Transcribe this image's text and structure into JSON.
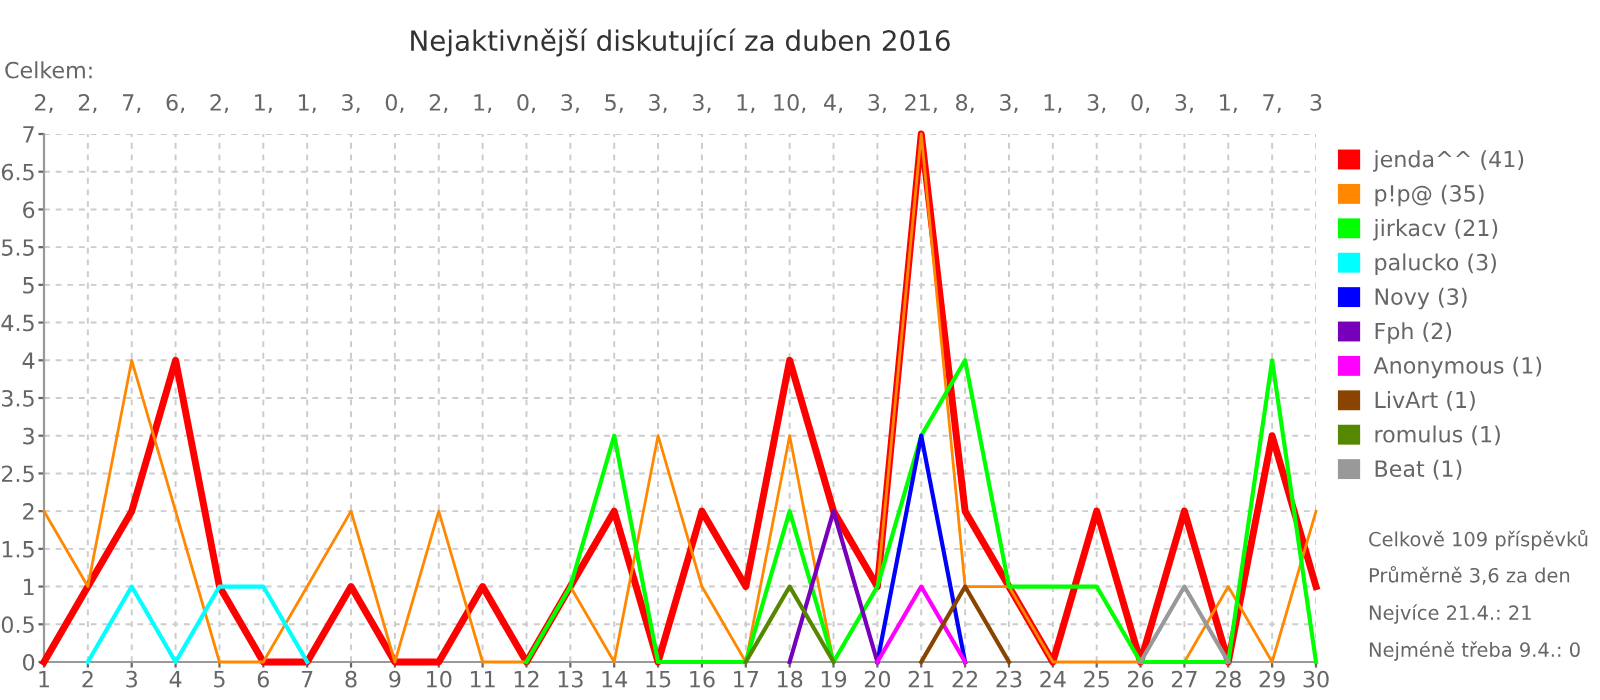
{
  "chart_data": {
    "type": "line",
    "title": "Nejaktivnější diskutující za duben 2016",
    "x": [
      1,
      2,
      3,
      4,
      5,
      6,
      7,
      8,
      9,
      10,
      11,
      12,
      13,
      14,
      15,
      16,
      17,
      18,
      19,
      20,
      21,
      22,
      23,
      24,
      25,
      26,
      27,
      28,
      29,
      30
    ],
    "xlim": [
      1,
      30
    ],
    "xticks": [
      1,
      2,
      3,
      4,
      5,
      6,
      7,
      8,
      9,
      10,
      11,
      12,
      13,
      14,
      15,
      16,
      17,
      18,
      19,
      20,
      21,
      22,
      23,
      24,
      25,
      26,
      27,
      28,
      29,
      30
    ],
    "ylim": [
      0,
      7
    ],
    "yticks": [
      0,
      {
        "value": 0.5,
        "label": "0.5"
      },
      1,
      {
        "value": 1.5,
        "label": "1.5"
      },
      2,
      {
        "value": 2.5,
        "label": "2.5"
      },
      3,
      {
        "value": 3.5,
        "label": "3.5"
      },
      4,
      {
        "value": 4.5,
        "label": "4.5"
      },
      5,
      {
        "value": 5.5,
        "label": "5.5"
      },
      6,
      {
        "value": 6.5,
        "label": "6.5"
      },
      7
    ],
    "grid": true,
    "legend": "right",
    "marker": "none",
    "line_style": "solid",
    "totals": [
      "2,",
      "2,",
      "7,",
      "6,",
      "2,",
      "1,",
      "1,",
      "3,",
      "0,",
      "2,",
      "1,",
      "0,",
      "3,",
      "5,",
      "3,",
      "3,",
      "1,",
      "10,",
      "4,",
      "3,",
      "21,",
      "8,",
      "3,",
      "1,",
      "3,",
      "0,",
      "3,",
      "1,",
      "7,",
      "3"
    ],
    "annotations": [
      "Celkem:",
      "Celkově 109 příspěvků",
      "Průměrně 3,6 za den",
      "Nejvíce 21.4.: 21",
      "Nejméně třeba 9.4.: 0"
    ],
    "series": [
      {
        "name": "jenda^^ (41)",
        "color": "#ff0000",
        "values": [
          0,
          1,
          2,
          4,
          1,
          0,
          0,
          1,
          0,
          0,
          1,
          0,
          1,
          2,
          0,
          2,
          1,
          4,
          2,
          1,
          7,
          2,
          1,
          0,
          2,
          0,
          2,
          0,
          3,
          1
        ]
      },
      {
        "name": "p!p@ (35)",
        "color": "#ff8800",
        "values": [
          2,
          1,
          4,
          2,
          0,
          0,
          1,
          2,
          0,
          2,
          0,
          0,
          1,
          0,
          3,
          1,
          0,
          3,
          0,
          1,
          7,
          1,
          1,
          0,
          0,
          0,
          0,
          1,
          0,
          2
        ]
      },
      {
        "name": "jirkacv (21)",
        "color": "#00ff00",
        "values": [
          null,
          null,
          null,
          null,
          null,
          null,
          null,
          null,
          null,
          null,
          null,
          0,
          1,
          3,
          0,
          0,
          0,
          2,
          0,
          1,
          3,
          4,
          1,
          1,
          1,
          0,
          0,
          0,
          4,
          0
        ]
      },
      {
        "name": "palucko (3)",
        "color": "#00ffff",
        "values": [
          null,
          0,
          1,
          0,
          1,
          1,
          0,
          null,
          null,
          null,
          null,
          null,
          null,
          null,
          null,
          null,
          null,
          null,
          null,
          null,
          null,
          null,
          null,
          null,
          null,
          null,
          null,
          null,
          null,
          null
        ]
      },
      {
        "name": "Novy (3)",
        "color": "#0000ff",
        "values": [
          null,
          null,
          null,
          null,
          null,
          null,
          null,
          null,
          null,
          null,
          null,
          null,
          null,
          null,
          null,
          null,
          null,
          null,
          null,
          0,
          3,
          0,
          null,
          null,
          null,
          null,
          null,
          null,
          null,
          null
        ]
      },
      {
        "name": "Fph (2)",
        "color": "#7700bb",
        "values": [
          null,
          null,
          null,
          null,
          null,
          null,
          null,
          null,
          null,
          null,
          null,
          null,
          null,
          null,
          null,
          null,
          null,
          0,
          2,
          0,
          null,
          null,
          null,
          null,
          null,
          null,
          null,
          null,
          null,
          null
        ]
      },
      {
        "name": "Anonymous (1)",
        "color": "#ff00ff",
        "values": [
          null,
          null,
          null,
          null,
          null,
          null,
          null,
          null,
          null,
          null,
          null,
          null,
          null,
          null,
          null,
          null,
          null,
          null,
          null,
          0,
          1,
          0,
          null,
          null,
          null,
          null,
          null,
          null,
          null,
          null
        ]
      },
      {
        "name": "LivArt (1)",
        "color": "#884400",
        "values": [
          null,
          null,
          null,
          null,
          null,
          null,
          null,
          null,
          null,
          null,
          null,
          null,
          null,
          null,
          null,
          null,
          null,
          null,
          null,
          null,
          0,
          1,
          0,
          null,
          null,
          null,
          null,
          null,
          null,
          null
        ]
      },
      {
        "name": "romulus (1)",
        "color": "#558800",
        "values": [
          null,
          null,
          null,
          null,
          null,
          null,
          null,
          null,
          null,
          null,
          null,
          null,
          null,
          null,
          null,
          null,
          0,
          1,
          0,
          null,
          null,
          null,
          null,
          null,
          null,
          null,
          null,
          null,
          null,
          null
        ]
      },
      {
        "name": "Beat (1)",
        "color": "#999999",
        "values": [
          null,
          null,
          null,
          null,
          null,
          null,
          null,
          null,
          null,
          null,
          null,
          null,
          null,
          null,
          null,
          null,
          null,
          null,
          null,
          null,
          null,
          null,
          null,
          null,
          null,
          0,
          1,
          0,
          null,
          null
        ]
      }
    ]
  }
}
